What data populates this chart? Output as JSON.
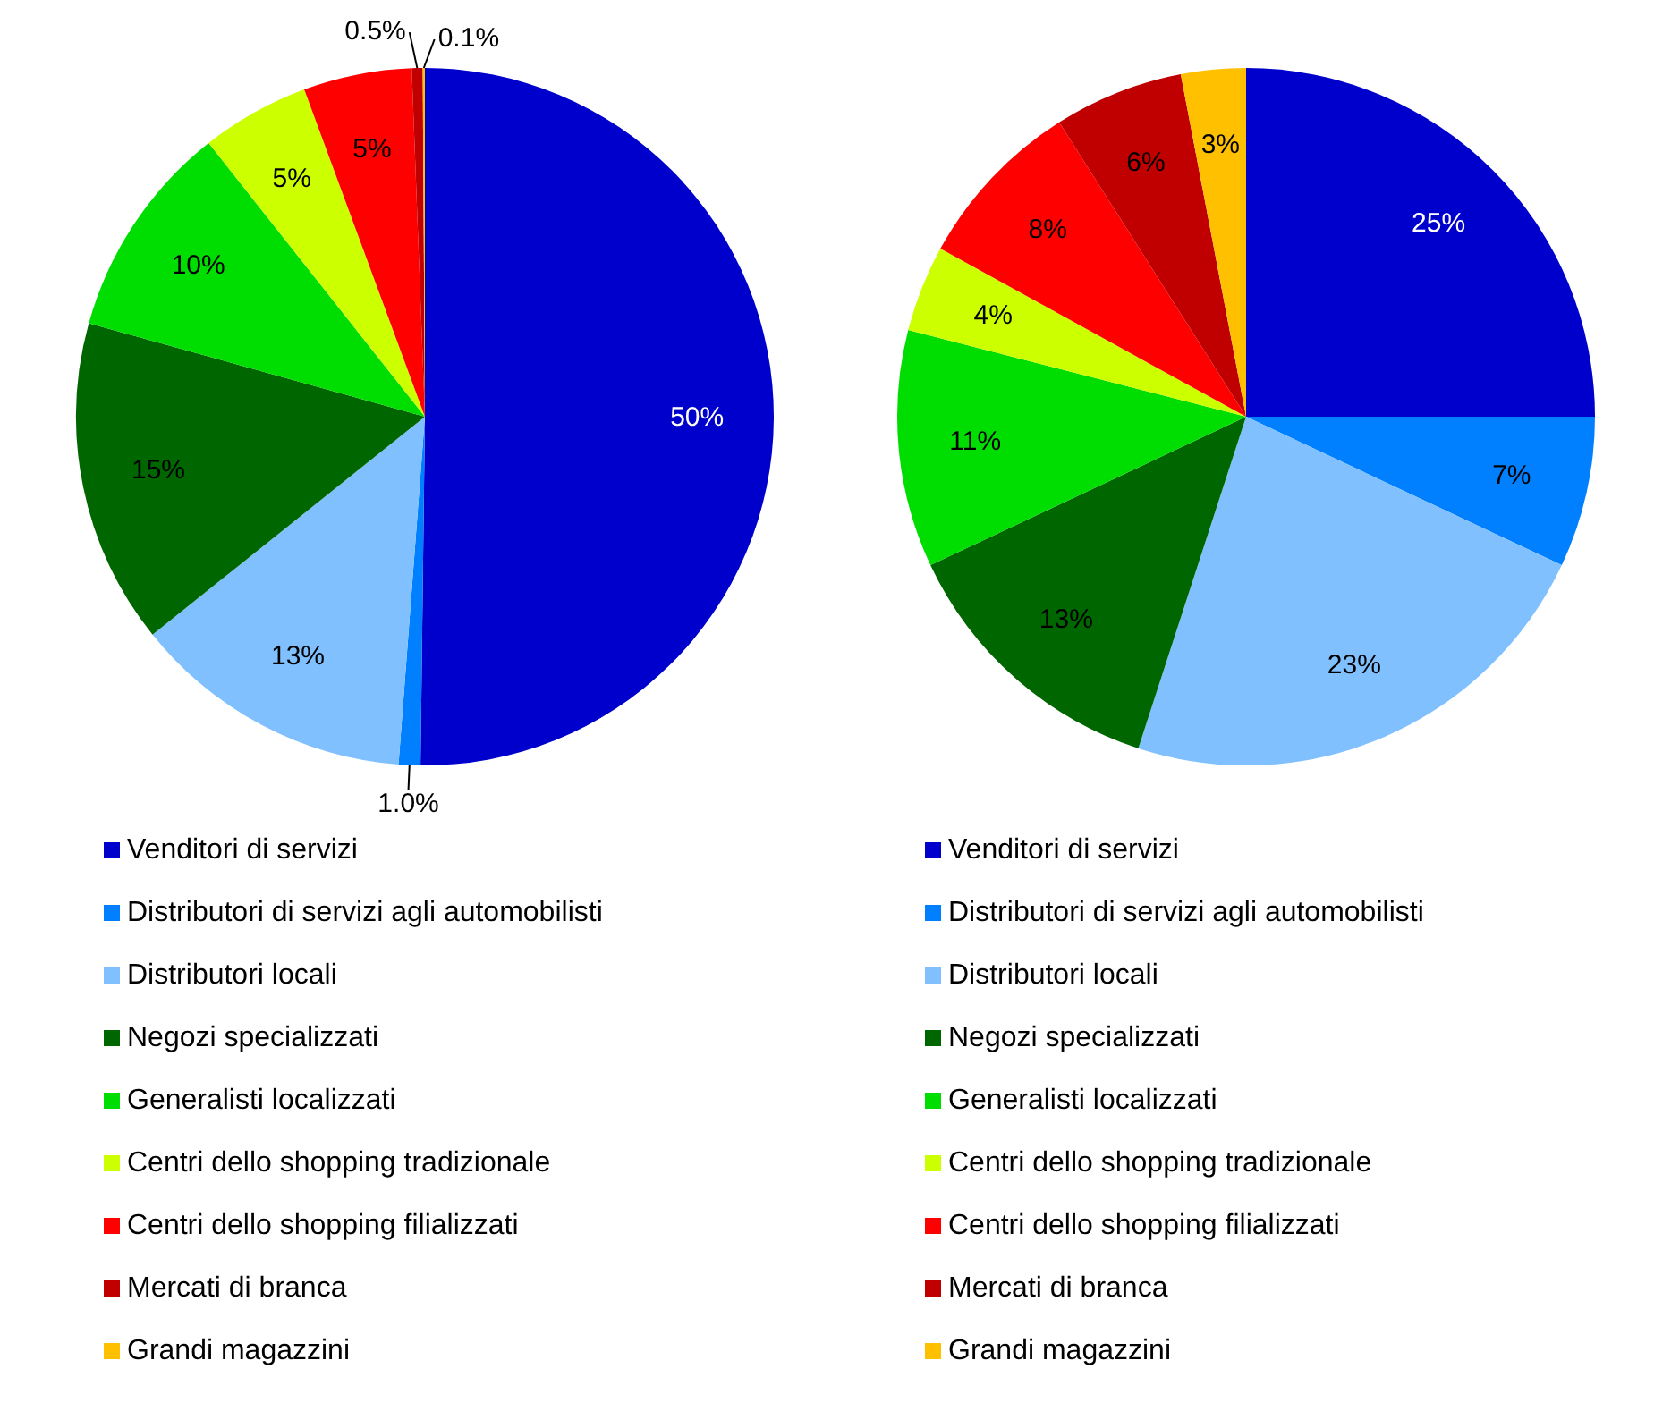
{
  "chart_data": [
    {
      "type": "pie",
      "categories": [
        "Venditori di servizi",
        "Distributori di servizi agli automobilisti",
        "Distributori locali",
        "Negozi specializzati",
        "Generalisti localizzati",
        "Centri dello shopping tradizionale",
        "Centri dello shopping filializzati",
        "Mercati di branca",
        "Grandi magazzini"
      ],
      "values": [
        50,
        1.0,
        13,
        15,
        10,
        5,
        5,
        0.5,
        0.1
      ],
      "value_labels": [
        "50%",
        "1.0%",
        "13%",
        "15%",
        "10%",
        "5%",
        "5%",
        "0.5%",
        "0.1%"
      ],
      "colors": [
        "#0000cc",
        "#0080ff",
        "#80c0ff",
        "#006600",
        "#00dd00",
        "#ccff00",
        "#ff0000",
        "#c00000",
        "#ffc000"
      ],
      "legend": "bottom"
    },
    {
      "type": "pie",
      "categories": [
        "Venditori di servizi",
        "Distributori di servizi agli automobilisti",
        "Distributori locali",
        "Negozi specializzati",
        "Generalisti localizzati",
        "Centri dello shopping tradizionale",
        "Centri dello shopping filializzati",
        "Mercati di branca",
        "Grandi magazzini"
      ],
      "values": [
        25,
        7,
        23,
        13,
        11,
        4,
        8,
        6,
        3
      ],
      "value_labels": [
        "25%",
        "7%",
        "23%",
        "13%",
        "11%",
        "4%",
        "8%",
        "6%",
        "3%"
      ],
      "colors": [
        "#0000cc",
        "#0080ff",
        "#80c0ff",
        "#006600",
        "#00dd00",
        "#ccff00",
        "#ff0000",
        "#c00000",
        "#ffc000"
      ],
      "legend": "bottom"
    }
  ]
}
